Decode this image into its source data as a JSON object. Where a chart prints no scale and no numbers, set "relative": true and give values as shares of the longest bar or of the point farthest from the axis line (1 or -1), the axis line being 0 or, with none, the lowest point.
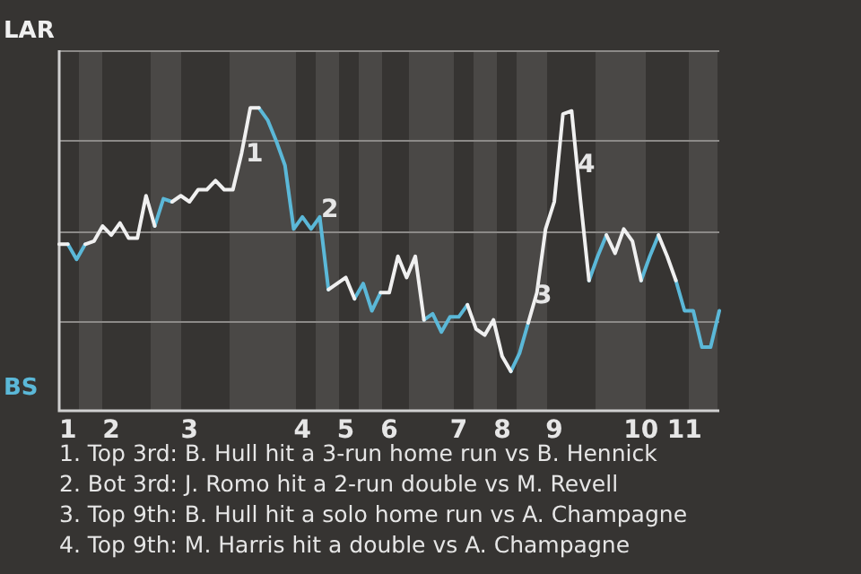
{
  "chart_data": {
    "type": "line",
    "relative": true,
    "categories": [
      null,
      "1",
      null,
      null,
      null,
      null,
      "2",
      null,
      null,
      null,
      null,
      null,
      null,
      null,
      null,
      "3",
      null,
      null,
      null,
      null,
      null,
      null,
      null,
      null,
      null,
      null,
      null,
      null,
      "4",
      null,
      null,
      null,
      null,
      "5",
      null,
      null,
      null,
      null,
      "6",
      null,
      null,
      null,
      null,
      null,
      null,
      null,
      "7",
      null,
      null,
      null,
      null,
      "8",
      null,
      null,
      null,
      null,
      null,
      "9",
      null,
      null,
      null,
      null,
      null,
      null,
      null,
      null,
      null,
      "10",
      null,
      null,
      null,
      null,
      "11",
      null,
      null,
      null,
      null
    ],
    "series": [
      {
        "color": "#f0f0f0",
        "values": [
          0.55,
          0.55,
          null,
          0.55,
          0.56,
          0.61,
          0.58,
          0.62,
          0.57,
          0.57,
          0.71,
          0.61,
          null,
          0.69,
          0.71,
          0.69,
          0.73,
          0.73,
          0.76,
          0.73,
          0.73,
          0.85,
          1,
          1,
          null,
          null,
          null,
          null,
          null,
          null,
          null,
          0.4,
          0.42,
          0.44,
          0.37,
          null,
          null,
          0.39,
          0.39,
          0.51,
          0.44,
          0.51,
          0.3,
          null,
          null,
          null,
          null,
          0.35,
          0.27,
          0.25,
          0.3,
          0.18,
          0.13,
          null,
          0.29,
          0.39,
          0.6,
          0.69,
          0.98,
          0.99,
          0.7,
          0.43,
          null,
          0.58,
          0.52,
          0.6,
          0.56,
          0.43,
          null,
          0.58,
          0.51,
          0.43,
          null,
          null,
          null,
          null,
          null
        ]
      },
      {
        "color": "#5bb8d8",
        "values": [
          null,
          0.55,
          0.5,
          0.55,
          null,
          null,
          null,
          null,
          null,
          null,
          null,
          0.61,
          0.7,
          0.69,
          null,
          null,
          null,
          null,
          null,
          null,
          null,
          null,
          null,
          1,
          0.96,
          0.89,
          0.81,
          0.6,
          0.64,
          0.6,
          0.64,
          0.4,
          null,
          null,
          0.37,
          0.42,
          0.33,
          0.39,
          null,
          null,
          null,
          null,
          0.3,
          0.32,
          0.26,
          0.31,
          0.31,
          0.35,
          null,
          null,
          null,
          null,
          0.13,
          0.19,
          0.29,
          null,
          null,
          null,
          null,
          null,
          null,
          0.43,
          0.51,
          0.58,
          null,
          null,
          null,
          0.43,
          0.51,
          0.58,
          null,
          0.43,
          0.33,
          0.33,
          0.21,
          0.21,
          0.33
        ]
      }
    ],
    "grid": "y",
    "legend": false,
    "marker": "none",
    "line_style": "solid",
    "annotations": [
      "LAR",
      "BS",
      "1",
      "2",
      "3",
      "4",
      "1. Top 3rd: B. Hull hit a 3-run home run vs B. Hennick",
      "2. Bot 3rd: J. Romo hit a 2-run double vs M. Revell",
      "3. Top 9th: B. Hull hit a solo home run vs A. Champagne",
      "4. Top 9th: M. Harris hit a double vs A. Champagne"
    ]
  }
}
